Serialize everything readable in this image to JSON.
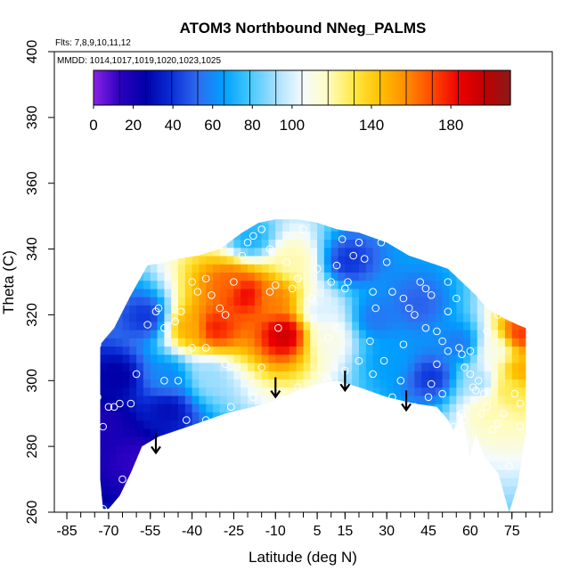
{
  "chart_data": {
    "type": "heatmap",
    "title": "ATOM3 Northbound NNeg_PALMS",
    "flights_note": "Flts: 7,8,9,10,11,12",
    "dates_note": "MMDD: 1014,1017,1019,1020,1023,1025",
    "xlabel": "Latitude (deg N)",
    "ylabel": "Theta (C)",
    "xlim": [
      -85,
      85
    ],
    "ylim": [
      260,
      400
    ],
    "x_ticks": [
      -85,
      -70,
      -55,
      -40,
      -25,
      -10,
      5,
      15,
      30,
      45,
      60,
      75
    ],
    "y_ticks": [
      260,
      280,
      300,
      320,
      340,
      360,
      380,
      400
    ],
    "colorbar": {
      "range": [
        0,
        210
      ],
      "ticks": [
        0,
        20,
        40,
        60,
        80,
        100,
        140,
        180
      ],
      "colors": [
        "#8a22e6",
        "#2a00c0",
        "#0000a8",
        "#0a2fd8",
        "#2f6cf0",
        "#00a0ff",
        "#45c8ff",
        "#a8e0ff",
        "#f4fbff",
        "#fffcc0",
        "#ffe840",
        "#ffc000",
        "#ff8c00",
        "#ff4800",
        "#ee0000",
        "#c00000",
        "#8a1a1a"
      ]
    },
    "coverage_top": [
      [
        -73,
        311
      ],
      [
        -68,
        316
      ],
      [
        -62,
        326
      ],
      [
        -56,
        335
      ],
      [
        -50,
        336
      ],
      [
        -45,
        337
      ],
      [
        -38,
        338
      ],
      [
        -30,
        340
      ],
      [
        -22,
        345
      ],
      [
        -16,
        348
      ],
      [
        -10,
        349
      ],
      [
        -2,
        349
      ],
      [
        5,
        348
      ],
      [
        12,
        346
      ],
      [
        20,
        345
      ],
      [
        30,
        342
      ],
      [
        38,
        338
      ],
      [
        45,
        336
      ],
      [
        52,
        334
      ],
      [
        57,
        330
      ],
      [
        62,
        326
      ],
      [
        66,
        322
      ],
      [
        72,
        319
      ],
      [
        77,
        317
      ],
      [
        80,
        316
      ]
    ],
    "coverage_bottom": [
      [
        80,
        284
      ],
      [
        77,
        268
      ],
      [
        74,
        260
      ],
      [
        70,
        272
      ],
      [
        65,
        277
      ],
      [
        62,
        284
      ],
      [
        60,
        277
      ],
      [
        57,
        290
      ],
      [
        54,
        285
      ],
      [
        52,
        288
      ],
      [
        48,
        292
      ],
      [
        40,
        293
      ],
      [
        30,
        295
      ],
      [
        20,
        298
      ],
      [
        12,
        300
      ],
      [
        5,
        299
      ],
      [
        -2,
        297
      ],
      [
        -10,
        294
      ],
      [
        -18,
        292
      ],
      [
        -28,
        290
      ],
      [
        -38,
        287
      ],
      [
        -45,
        285
      ],
      [
        -52,
        283
      ],
      [
        -58,
        280
      ],
      [
        -62,
        272
      ],
      [
        -66,
        265
      ],
      [
        -70,
        261
      ],
      [
        -72,
        261
      ],
      [
        -73,
        270
      ]
    ],
    "hotspots": [
      {
        "lat": -8,
        "theta": 313,
        "value": 195
      },
      {
        "lat": -33,
        "theta": 315,
        "value": 180
      },
      {
        "lat": -22,
        "theta": 325,
        "value": 185
      },
      {
        "lat": -42,
        "theta": 315,
        "value": 150
      },
      {
        "lat": -28,
        "theta": 328,
        "value": 165
      },
      {
        "lat": -12,
        "theta": 324,
        "value": 160
      },
      {
        "lat": -5,
        "theta": 335,
        "value": 120
      },
      {
        "lat": -20,
        "theta": 342,
        "value": 70
      },
      {
        "lat": 8,
        "theta": 312,
        "value": 110
      },
      {
        "lat": 5,
        "theta": 320,
        "value": 100
      },
      {
        "lat": 77,
        "theta": 313,
        "value": 175
      },
      {
        "lat": 77,
        "theta": 302,
        "value": 150
      },
      {
        "lat": 72,
        "theta": 296,
        "value": 130
      },
      {
        "lat": 68,
        "theta": 308,
        "value": 110
      },
      {
        "lat": 65,
        "theta": 290,
        "value": 120
      },
      {
        "lat": 62,
        "theta": 298,
        "value": 90
      },
      {
        "lat": 25,
        "theta": 318,
        "value": 55
      },
      {
        "lat": 40,
        "theta": 322,
        "value": 50
      },
      {
        "lat": 55,
        "theta": 310,
        "value": 55
      },
      {
        "lat": 30,
        "theta": 305,
        "value": 65
      },
      {
        "lat": -50,
        "theta": 300,
        "value": 60
      },
      {
        "lat": -35,
        "theta": 300,
        "value": 90
      },
      {
        "lat": -58,
        "theta": 318,
        "value": 40
      },
      {
        "lat": -68,
        "theta": 300,
        "value": 25
      },
      {
        "lat": -72,
        "theta": 285,
        "value": 18
      },
      {
        "lat": -62,
        "theta": 275,
        "value": 12
      },
      {
        "lat": -50,
        "theta": 290,
        "value": 30
      },
      {
        "lat": 45,
        "theta": 300,
        "value": 40
      },
      {
        "lat": 15,
        "theta": 335,
        "value": 40
      }
    ],
    "samples": [
      [
        -74,
        311
      ],
      [
        -70,
        292
      ],
      [
        -68,
        292
      ],
      [
        -66,
        293
      ],
      [
        -62,
        293
      ],
      [
        -72,
        286
      ],
      [
        -65,
        270
      ],
      [
        -72,
        261
      ],
      [
        -74,
        295
      ],
      [
        -60,
        302
      ],
      [
        -56,
        317
      ],
      [
        -53,
        321
      ],
      [
        -52,
        322
      ],
      [
        -50,
        316
      ],
      [
        -46,
        318
      ],
      [
        -44,
        321
      ],
      [
        -40,
        330
      ],
      [
        -38,
        327
      ],
      [
        -35,
        331
      ],
      [
        -33,
        326
      ],
      [
        -30,
        322
      ],
      [
        -28,
        320
      ],
      [
        -25,
        330
      ],
      [
        -22,
        338
      ],
      [
        -20,
        342
      ],
      [
        -18,
        344
      ],
      [
        -15,
        346
      ],
      [
        -12,
        340
      ],
      [
        -12,
        327
      ],
      [
        -10,
        329
      ],
      [
        -9,
        316
      ],
      [
        -6,
        336
      ],
      [
        -4,
        328
      ],
      [
        -2,
        331
      ],
      [
        0,
        346
      ],
      [
        -2,
        298
      ],
      [
        -8,
        296
      ],
      [
        -18,
        295
      ],
      [
        -26,
        292
      ],
      [
        -35,
        288
      ],
      [
        -42,
        288
      ],
      [
        -45,
        300
      ],
      [
        -40,
        310
      ],
      [
        -35,
        310
      ],
      [
        5,
        334
      ],
      [
        8,
        349
      ],
      [
        10,
        330
      ],
      [
        12,
        335
      ],
      [
        14,
        343
      ],
      [
        15,
        328
      ],
      [
        16,
        330
      ],
      [
        18,
        338
      ],
      [
        20,
        342
      ],
      [
        22,
        337
      ],
      [
        25,
        327
      ],
      [
        26,
        322
      ],
      [
        28,
        342
      ],
      [
        30,
        336
      ],
      [
        32,
        327
      ],
      [
        35,
        341
      ],
      [
        36,
        325
      ],
      [
        38,
        322
      ],
      [
        40,
        320
      ],
      [
        42,
        330
      ],
      [
        44,
        328
      ],
      [
        46,
        326
      ],
      [
        48,
        315
      ],
      [
        50,
        312
      ],
      [
        52,
        330
      ],
      [
        54,
        334
      ],
      [
        55,
        325
      ],
      [
        56,
        310
      ],
      [
        57,
        308
      ],
      [
        58,
        304
      ],
      [
        60,
        302
      ],
      [
        61,
        298
      ],
      [
        62,
        297
      ],
      [
        63,
        300
      ],
      [
        64,
        290
      ],
      [
        65,
        296
      ],
      [
        66,
        292
      ],
      [
        68,
        285
      ],
      [
        70,
        287
      ],
      [
        72,
        290
      ],
      [
        74,
        274
      ],
      [
        76,
        296
      ],
      [
        78,
        293
      ],
      [
        78,
        286
      ],
      [
        58,
        288
      ],
      [
        57,
        290
      ],
      [
        54,
        286
      ],
      [
        50,
        296
      ],
      [
        46,
        299
      ],
      [
        40,
        292
      ],
      [
        32,
        295
      ],
      [
        25,
        302
      ],
      [
        15,
        303
      ],
      [
        8,
        301
      ],
      [
        9,
        300
      ],
      [
        2,
        296
      ],
      [
        18,
        297
      ],
      [
        35,
        300
      ],
      [
        45,
        295
      ],
      [
        48,
        305
      ],
      [
        52,
        309
      ],
      [
        60,
        309
      ],
      [
        66,
        315
      ],
      [
        70,
        320
      ],
      [
        52,
        321
      ],
      [
        44,
        316
      ],
      [
        36,
        311
      ],
      [
        29,
        306
      ],
      [
        24,
        312
      ],
      [
        20,
        306
      ],
      [
        12,
        316
      ],
      [
        9,
        313
      ],
      [
        3,
        325
      ],
      [
        -15,
        304
      ],
      [
        -28,
        305
      ],
      [
        -50,
        300
      ]
    ],
    "arrows": [
      {
        "lat": -53,
        "theta": 284
      },
      {
        "lat": -10,
        "theta": 301
      },
      {
        "lat": 15,
        "theta": 303
      },
      {
        "lat": 37,
        "theta": 297
      }
    ]
  }
}
